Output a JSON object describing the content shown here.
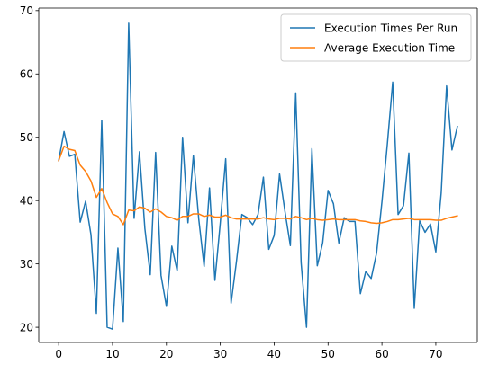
{
  "chart_data": {
    "type": "line",
    "title": "",
    "xlabel": "",
    "ylabel": "",
    "xlim": [
      -3.7,
      77.7
    ],
    "ylim": [
      17.6,
      70.4
    ],
    "grid": false,
    "legend_position": "top-right",
    "x_ticks": [
      0,
      10,
      20,
      30,
      40,
      50,
      60,
      70
    ],
    "y_ticks": [
      20,
      30,
      40,
      50,
      60,
      70
    ],
    "x": [
      0,
      1,
      2,
      3,
      4,
      5,
      6,
      7,
      8,
      9,
      10,
      11,
      12,
      13,
      14,
      15,
      16,
      17,
      18,
      19,
      20,
      21,
      22,
      23,
      24,
      25,
      26,
      27,
      28,
      29,
      30,
      31,
      32,
      33,
      34,
      35,
      36,
      37,
      38,
      39,
      40,
      41,
      42,
      43,
      44,
      45,
      46,
      47,
      48,
      49,
      50,
      51,
      52,
      53,
      54,
      55,
      56,
      57,
      58,
      59,
      60,
      61,
      62,
      63,
      64,
      65,
      66,
      67,
      68,
      69,
      70,
      71,
      72,
      73,
      74
    ],
    "series": [
      {
        "name": "Execution Times Per Run",
        "color": "#1f77b4",
        "values": [
          46.3,
          50.9,
          47.0,
          47.3,
          36.6,
          39.9,
          34.6,
          22.2,
          52.7,
          20.0,
          19.7,
          32.5,
          20.9,
          68.0,
          37.2,
          47.7,
          35.6,
          28.3,
          47.6,
          28.2,
          23.3,
          32.8,
          28.9,
          50.0,
          36.5,
          47.1,
          37.1,
          29.6,
          42.0,
          27.4,
          36.5,
          46.6,
          23.8,
          30.4,
          37.8,
          37.3,
          36.2,
          37.8,
          43.7,
          32.3,
          34.5,
          44.2,
          38.3,
          32.9,
          57.0,
          30.2,
          20.0,
          48.2,
          29.7,
          33.3,
          41.6,
          39.5,
          33.3,
          37.3,
          36.7,
          36.7,
          25.3,
          28.8,
          27.7,
          31.7,
          39.8,
          48.9,
          58.7,
          37.8,
          39.2,
          47.5,
          23.0,
          36.8,
          35.0,
          36.3,
          31.9,
          41.2,
          58.1,
          48.0,
          51.7
        ]
      },
      {
        "name": "Average Execution Time",
        "color": "#ff7f0e",
        "values": [
          46.3,
          48.6,
          48.1,
          47.9,
          45.6,
          44.6,
          43.1,
          40.5,
          41.9,
          39.7,
          37.9,
          37.5,
          36.2,
          38.5,
          38.4,
          39.0,
          38.8,
          38.2,
          38.7,
          38.2,
          37.5,
          37.3,
          36.9,
          37.5,
          37.5,
          37.9,
          37.9,
          37.5,
          37.7,
          37.4,
          37.4,
          37.7,
          37.3,
          37.1,
          37.1,
          37.1,
          37.1,
          37.1,
          37.3,
          37.1,
          37.0,
          37.2,
          37.2,
          37.1,
          37.5,
          37.3,
          37.0,
          37.2,
          37.0,
          36.9,
          37.0,
          37.1,
          37.0,
          37.0,
          37.0,
          37.0,
          36.8,
          36.7,
          36.5,
          36.4,
          36.5,
          36.7,
          37.0,
          37.0,
          37.1,
          37.2,
          37.0,
          37.0,
          37.0,
          37.0,
          36.9,
          36.9,
          37.2,
          37.4,
          37.6
        ]
      }
    ]
  }
}
